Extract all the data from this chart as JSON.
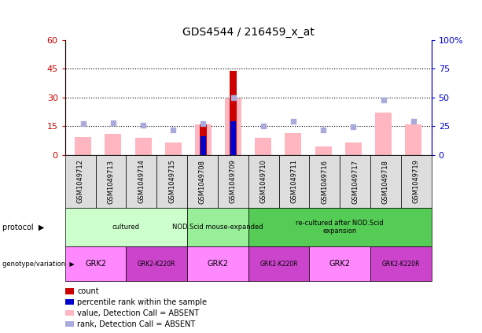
{
  "title": "GDS4544 / 216459_x_at",
  "samples": [
    "GSM1049712",
    "GSM1049713",
    "GSM1049714",
    "GSM1049715",
    "GSM1049708",
    "GSM1049709",
    "GSM1049710",
    "GSM1049711",
    "GSM1049716",
    "GSM1049717",
    "GSM1049718",
    "GSM1049719"
  ],
  "pink_values": [
    9.5,
    11.0,
    9.0,
    6.5,
    16.0,
    29.5,
    9.0,
    11.5,
    4.5,
    6.5,
    22.0,
    16.0
  ],
  "blue_rank_values": [
    27.0,
    28.0,
    26.0,
    22.0,
    27.0,
    50.0,
    25.0,
    29.0,
    21.5,
    24.5,
    47.5,
    29.0
  ],
  "red_count_values": [
    0,
    0,
    0,
    0,
    16.0,
    44.0,
    0,
    0,
    0,
    0,
    0,
    0
  ],
  "blue_count_values": [
    0,
    0,
    0,
    0,
    16.5,
    29.5,
    0,
    0,
    0,
    0,
    0,
    0
  ],
  "ylim_left": [
    0,
    60
  ],
  "ylim_right": [
    0,
    100
  ],
  "yticks_left": [
    0,
    15,
    30,
    45,
    60
  ],
  "yticks_right": [
    0,
    25,
    50,
    75,
    100
  ],
  "ytick_labels_left": [
    "0",
    "15",
    "30",
    "45",
    "60"
  ],
  "ytick_labels_right": [
    "0",
    "25",
    "50",
    "75",
    "100%"
  ],
  "hlines": [
    15,
    30,
    45
  ],
  "proto_data": [
    {
      "label": "cultured",
      "start": 0,
      "end": 4,
      "color": "#CCFFCC"
    },
    {
      "label": "NOD.Scid mouse-expanded",
      "start": 4,
      "end": 6,
      "color": "#99EE99"
    },
    {
      "label": "re-cultured after NOD.Scid\nexpansion",
      "start": 6,
      "end": 12,
      "color": "#55CC55"
    }
  ],
  "geno_data": [
    {
      "label": "GRK2",
      "start": 0,
      "end": 2,
      "color": "#FF88FF"
    },
    {
      "label": "GRK2-K220R",
      "start": 2,
      "end": 4,
      "color": "#CC44CC"
    },
    {
      "label": "GRK2",
      "start": 4,
      "end": 6,
      "color": "#FF88FF"
    },
    {
      "label": "GRK2-K220R",
      "start": 6,
      "end": 8,
      "color": "#CC44CC"
    },
    {
      "label": "GRK2",
      "start": 8,
      "end": 10,
      "color": "#FF88FF"
    },
    {
      "label": "GRK2-K220R",
      "start": 10,
      "end": 12,
      "color": "#CC44CC"
    }
  ],
  "pink_color": "#FFB6C1",
  "blue_color": "#AAAADD",
  "red_color": "#CC0000",
  "dark_blue_color": "#0000CC",
  "axis_left_color": "#CC0000",
  "axis_right_color": "#0000CC",
  "sample_bg_color": "#DDDDDD",
  "legend_items": [
    {
      "color": "#CC0000",
      "label": "count"
    },
    {
      "color": "#0000CC",
      "label": "percentile rank within the sample"
    },
    {
      "color": "#FFB6C1",
      "label": "value, Detection Call = ABSENT"
    },
    {
      "color": "#AAAADD",
      "label": "rank, Detection Call = ABSENT"
    }
  ]
}
